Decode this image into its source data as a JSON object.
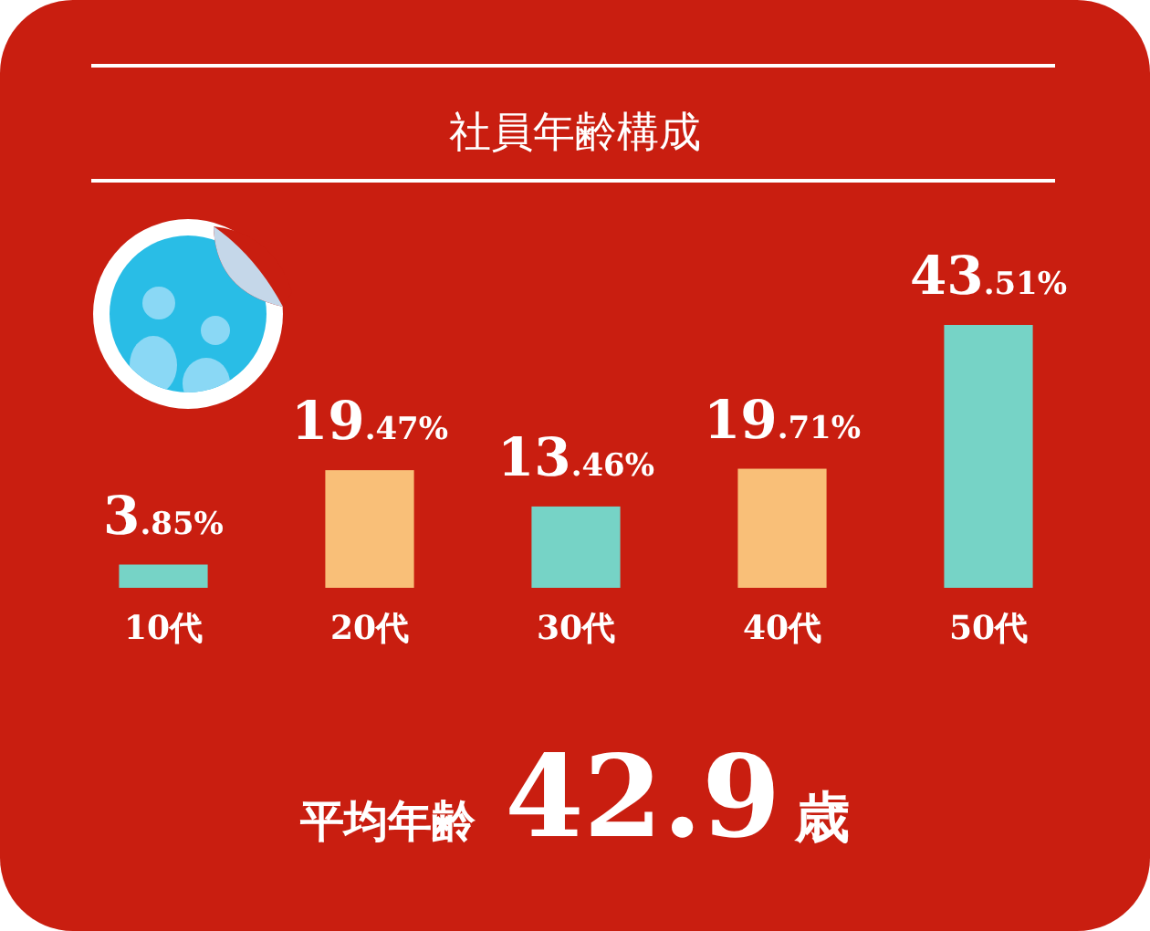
{
  "chart_data": {
    "type": "bar",
    "title": "社員年齢構成",
    "categories": [
      "10代",
      "20代",
      "30代",
      "40代",
      "50代"
    ],
    "values": [
      3.85,
      19.47,
      13.46,
      19.71,
      43.51
    ],
    "colors": [
      "#76d3c6",
      "#f9bf78",
      "#76d3c6",
      "#f9bf78",
      "#76d3c6"
    ],
    "value_labels": [
      "3.85%",
      "19.47%",
      "13.46%",
      "19.71%",
      "43.51%"
    ],
    "annotations": [
      "平均年齢 42.9歳"
    ]
  }
}
